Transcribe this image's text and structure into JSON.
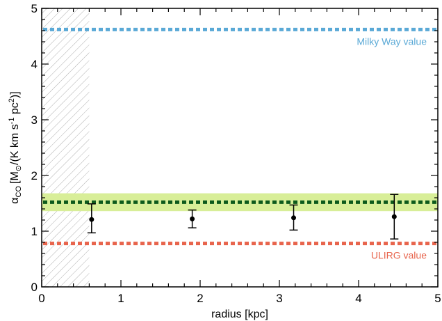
{
  "chart_data": {
    "type": "scatter",
    "title": "",
    "xlabel": "radius [kpc]",
    "ylabel": "αCO [M⊙/(K km s-1 pc2)]",
    "ylabel_parts": {
      "symbol": "α",
      "symbol_sub": "CO",
      "open": "[M",
      "sun_sub": "⊙",
      "mid": "/(K km s",
      "sup1": "-1",
      "mid2": " pc",
      "sup2": "2",
      "close": ")]"
    },
    "xlim": [
      0,
      5
    ],
    "ylim": [
      0,
      5
    ],
    "x_ticks": [
      0,
      1,
      2,
      3,
      4,
      5
    ],
    "y_ticks": [
      0,
      1,
      2,
      3,
      4,
      5
    ],
    "x_tick_labels": [
      "0",
      "1",
      "2",
      "3",
      "4",
      "5"
    ],
    "y_tick_labels": [
      "0",
      "1",
      "2",
      "3",
      "4",
      "5"
    ],
    "grid": false,
    "points": [
      {
        "x": 0.63,
        "y": 1.21,
        "err_low": 0.97,
        "err_high": 1.49
      },
      {
        "x": 1.9,
        "y": 1.22,
        "err_low": 1.06,
        "err_high": 1.38
      },
      {
        "x": 3.18,
        "y": 1.24,
        "err_low": 1.02,
        "err_high": 1.47
      },
      {
        "x": 4.45,
        "y": 1.26,
        "err_low": 0.86,
        "err_high": 1.66
      }
    ],
    "reference_lines": [
      {
        "y": 4.62,
        "label": "Milky Way value",
        "color": "#5aa9d6",
        "style": "dotted"
      },
      {
        "y": 1.52,
        "label": "",
        "color": "#0d5a1c",
        "style": "dotted"
      },
      {
        "y": 0.78,
        "label": "ULIRG value",
        "color": "#e8644c",
        "style": "dotted"
      }
    ],
    "band": {
      "y_low": 1.36,
      "y_high": 1.68,
      "color": "#d8ee98"
    },
    "hatched_region": {
      "x_from": 0,
      "x_to": 0.6
    },
    "colors": {
      "points": "#000000",
      "hatch": "#b0b0b0"
    }
  }
}
